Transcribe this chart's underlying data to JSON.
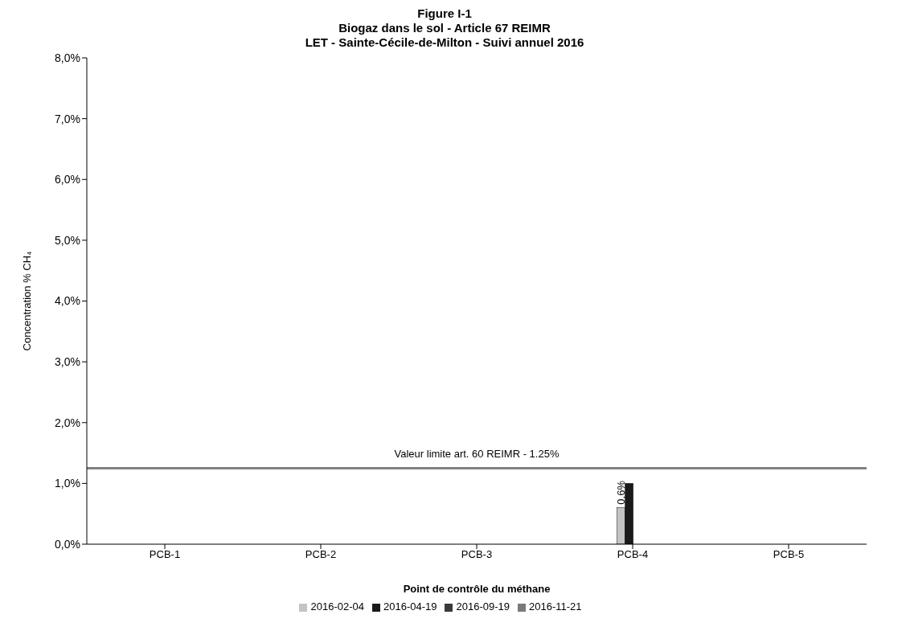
{
  "chart_data": {
    "type": "bar",
    "title": "Figure I-1",
    "subtitle": "Biogaz dans le sol - Article 67 REIMR\nLET - Sainte-Cécile-de-Milton - Suivi annuel 2016",
    "xlabel": "Point de contrôle du méthane",
    "ylabel": "Concentration % CH₄",
    "categories": [
      "PCB-1",
      "PCB-2",
      "PCB-3",
      "PCB-4",
      "PCB-5"
    ],
    "series": [
      {
        "name": "2016-02-04",
        "color": "#c4c4c4",
        "values": [
          0,
          0,
          0,
          0.6,
          0
        ],
        "value_labels": [
          null,
          null,
          null,
          "0,6%",
          null
        ]
      },
      {
        "name": "2016-04-19",
        "color": "#1a1a1a",
        "values": [
          0,
          0,
          0,
          1.0,
          0
        ]
      },
      {
        "name": "2016-09-19",
        "color": "#3a3a3a",
        "values": [
          0,
          0,
          0,
          0,
          0
        ]
      },
      {
        "name": "2016-11-21",
        "color": "#7a7a7a",
        "values": [
          0,
          0,
          0,
          0,
          0
        ]
      }
    ],
    "ylim": [
      0,
      8
    ],
    "yticks": [
      {
        "value": 0,
        "label": "0,0%"
      },
      {
        "value": 1,
        "label": "1,0%"
      },
      {
        "value": 2,
        "label": "2,0%"
      },
      {
        "value": 3,
        "label": "3,0%"
      },
      {
        "value": 4,
        "label": "4,0%"
      },
      {
        "value": 5,
        "label": "5,0%"
      },
      {
        "value": 6,
        "label": "6,0%"
      },
      {
        "value": 7,
        "label": "7,0%"
      },
      {
        "value": 8,
        "label": "8,0%"
      }
    ],
    "ref_lines": [
      {
        "axis": "y",
        "value": 1.25,
        "label": "Valeur limite art. 60 REIMR - 1.25%",
        "color": "#808080"
      }
    ],
    "grid": false,
    "legend": "bottom"
  }
}
